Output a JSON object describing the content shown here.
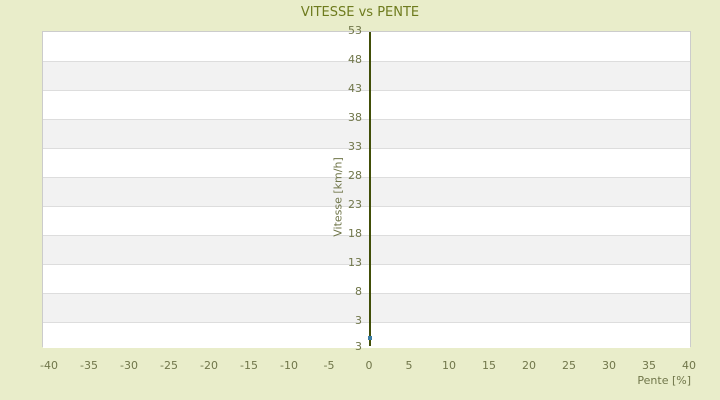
{
  "title": "VITESSE vs PENTE",
  "chart_data": {
    "type": "scatter",
    "title": "VITESSE vs PENTE",
    "xlabel": "Pente [%]",
    "ylabel": "Vitesse [km/h]",
    "x_ticks": [
      -40,
      -35,
      -30,
      -25,
      -20,
      -15,
      -10,
      -5,
      0,
      5,
      10,
      15,
      20,
      25,
      30,
      35,
      40
    ],
    "y_ticks": [
      53,
      48,
      43,
      38,
      33,
      28,
      23,
      18,
      13,
      8,
      3
    ],
    "y_axis_bottom_edge_label": "3",
    "xlim": [
      -40.9,
      40.3
    ],
    "y_gridline_range": [
      3,
      53
    ],
    "grid": "horizontal-bands-alternating",
    "legend": "none",
    "series": [
      {
        "name": "Vitesse",
        "marker": "square",
        "color": "#3a7ca3",
        "points": [
          {
            "x": 0,
            "y": 0.3
          }
        ]
      }
    ]
  },
  "colors": {
    "background": "#e9edca",
    "band_light": "#ffffff",
    "band_dark": "#f2f2f2",
    "plot_border": "#cccccc",
    "gridline": "#dddddd",
    "axis_line": "#414e08",
    "title_text": "#6e7b1e",
    "tick_text": "#70764a",
    "point": "#3a7ca3"
  }
}
